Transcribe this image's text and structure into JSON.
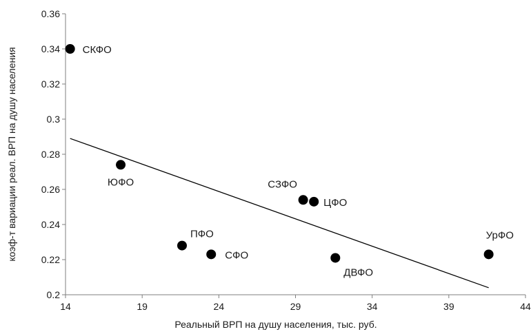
{
  "chart_data": {
    "type": "scatter",
    "title": "",
    "xlabel": "Реальный ВРП на душу населения, тыс. руб.",
    "ylabel": "коэф-т вариации реал. ВРП на душу населения",
    "xlim": [
      14,
      44
    ],
    "ylim": [
      0.2,
      0.36
    ],
    "x_ticks": [
      "14",
      "19",
      "24",
      "29",
      "34",
      "39",
      "44"
    ],
    "y_ticks": [
      "0.2",
      "0.22",
      "0.24",
      "0.26",
      "0.28",
      "0.3",
      "0.32",
      "0.34",
      "0.36"
    ],
    "grid": false,
    "legend": "none",
    "marker_color": "#000000",
    "points": [
      {
        "label": "СКФО",
        "x": 14.3,
        "y": 0.34
      },
      {
        "label": "ЮФО",
        "x": 17.6,
        "y": 0.274
      },
      {
        "label": "СЗФО",
        "x": 29.5,
        "y": 0.254
      },
      {
        "label": "ЦФО",
        "x": 30.2,
        "y": 0.253
      },
      {
        "label": "ПФО",
        "x": 21.6,
        "y": 0.228
      },
      {
        "label": "СФО",
        "x": 23.5,
        "y": 0.223
      },
      {
        "label": "ДВФО",
        "x": 31.6,
        "y": 0.221
      },
      {
        "label": "УрФО",
        "x": 41.6,
        "y": 0.223
      }
    ],
    "trendline": {
      "x": [
        14.3,
        41.6
      ],
      "y": [
        0.289,
        0.204
      ]
    }
  }
}
